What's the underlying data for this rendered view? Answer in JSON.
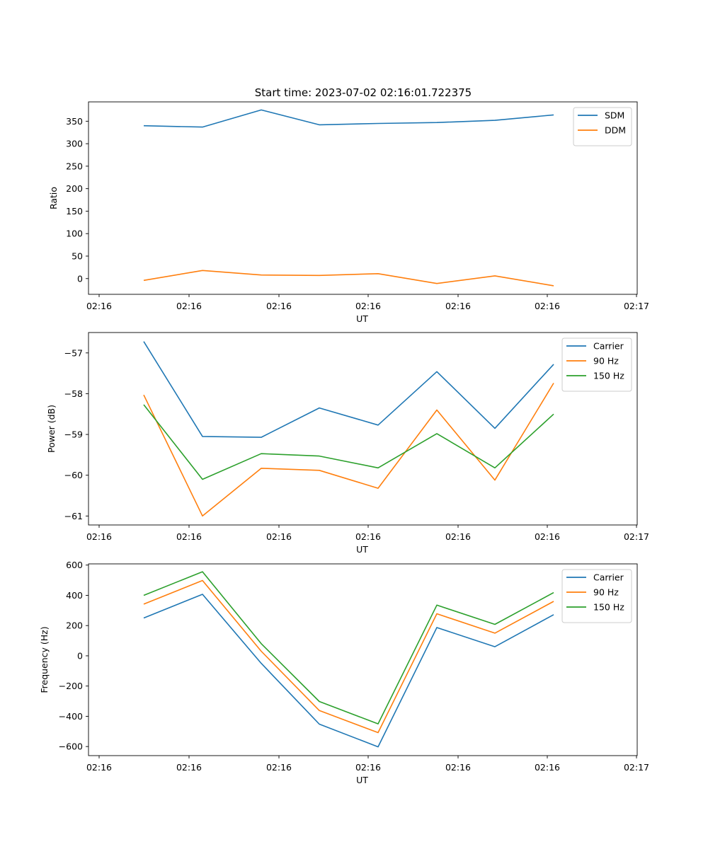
{
  "figure_title": "Start time: 2023-07-02 02:16:01.722375",
  "colors": {
    "blue": "#1f77b4",
    "orange": "#ff7f0e",
    "green": "#2ca02c",
    "axis": "#000000"
  },
  "chart_data": [
    {
      "type": "line",
      "xlabel": "UT",
      "ylabel": "Ratio",
      "x_tick_labels": [
        "02:16",
        "02:16",
        "02:16",
        "02:16",
        "02:16",
        "02:16",
        "02:17"
      ],
      "y_ticks": [
        0,
        50,
        100,
        150,
        200,
        250,
        300,
        350
      ],
      "ylim": [
        -35,
        393
      ],
      "legend_position": "top-right",
      "series": [
        {
          "name": "SDM",
          "color": "#1f77b4",
          "values": [
            340,
            337,
            375,
            342,
            345,
            347,
            352,
            364
          ]
        },
        {
          "name": "DDM",
          "color": "#ff7f0e",
          "values": [
            -4,
            18,
            8,
            7,
            11,
            -11,
            6,
            -16
          ]
        }
      ]
    },
    {
      "type": "line",
      "xlabel": "UT",
      "ylabel": "Power (dB)",
      "x_tick_labels": [
        "02:16",
        "02:16",
        "02:16",
        "02:16",
        "02:16",
        "02:16",
        "02:17"
      ],
      "y_ticks": [
        -61,
        -60,
        -59,
        -58,
        -57
      ],
      "ylim": [
        -61.22,
        -56.5
      ],
      "legend_position": "top-right",
      "series": [
        {
          "name": "Carrier",
          "color": "#1f77b4",
          "values": [
            -56.72,
            -59.05,
            -59.07,
            -58.35,
            -58.77,
            -57.46,
            -58.85,
            -57.28
          ]
        },
        {
          "name": "90 Hz",
          "color": "#ff7f0e",
          "values": [
            -58.03,
            -61.0,
            -59.83,
            -59.88,
            -60.32,
            -58.4,
            -60.12,
            -57.74
          ]
        },
        {
          "name": "150 Hz",
          "color": "#2ca02c",
          "values": [
            -58.27,
            -60.1,
            -59.47,
            -59.53,
            -59.82,
            -58.98,
            -59.82,
            -58.5
          ]
        }
      ]
    },
    {
      "type": "line",
      "xlabel": "UT",
      "ylabel": "Frequency (Hz)",
      "x_tick_labels": [
        "02:16",
        "02:16",
        "02:16",
        "02:16",
        "02:16",
        "02:16",
        "02:17"
      ],
      "y_ticks": [
        -600,
        -400,
        -200,
        0,
        200,
        400,
        600
      ],
      "ylim": [
        -660,
        608
      ],
      "legend_position": "top-right",
      "series": [
        {
          "name": "Carrier",
          "color": "#1f77b4",
          "values": [
            250,
            407,
            -50,
            -452,
            -602,
            187,
            60,
            272
          ]
        },
        {
          "name": "90 Hz",
          "color": "#ff7f0e",
          "values": [
            342,
            498,
            30,
            -362,
            -508,
            278,
            150,
            360
          ]
        },
        {
          "name": "150 Hz",
          "color": "#2ca02c",
          "values": [
            400,
            556,
            80,
            -302,
            -450,
            335,
            208,
            418
          ]
        }
      ]
    }
  ]
}
